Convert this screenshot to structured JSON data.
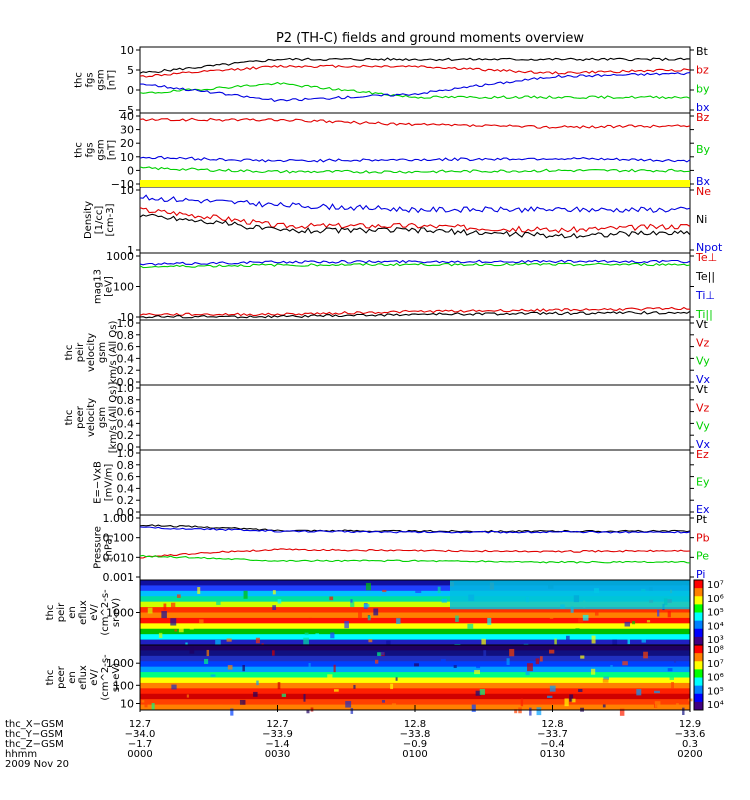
{
  "title": "P2 (TH-C) fields and ground moments overview",
  "colors": {
    "black": "#000000",
    "red": "#e00000",
    "green": "#00d000",
    "blue": "#0000e0",
    "yellow": "#ffff00"
  },
  "panels": [
    {
      "id": "fgs-gsm",
      "ylabel": [
        "thc",
        "fgs",
        "gsm",
        "[nT]"
      ],
      "yticks": [
        "10",
        "5",
        "0",
        "−5"
      ],
      "yrange": [
        -7,
        11
      ],
      "legend": [
        {
          "label": "Bt",
          "color": "black"
        },
        {
          "label": "bz",
          "color": "red"
        },
        {
          "label": "by",
          "color": "green"
        },
        {
          "label": "bx",
          "color": "blue"
        }
      ]
    },
    {
      "id": "fgs-dsl",
      "ylabel": [
        "thc",
        "fgs",
        "gsm",
        "[nT]"
      ],
      "yticks": [
        "40",
        "30",
        "20",
        "10",
        "0",
        "−10"
      ],
      "yrange": [
        -14,
        44
      ],
      "legend": [
        {
          "label": "Bz",
          "color": "red"
        },
        {
          "label": "By",
          "color": "green"
        },
        {
          "label": "Bx",
          "color": "blue"
        }
      ]
    },
    {
      "id": "density",
      "ylabel": [
        "Density",
        "[1/cc]",
        "[cm-3]"
      ],
      "yticks": [
        "10",
        "1"
      ],
      "scale": "log",
      "legend": [
        {
          "label": "Ne",
          "color": "red"
        },
        {
          "label": "Ni",
          "color": "black"
        },
        {
          "label": "Npot",
          "color": "blue"
        }
      ]
    },
    {
      "id": "temp",
      "ylabel": [
        "mag13",
        "[eV]"
      ],
      "yticks": [
        "1000",
        "100",
        "10"
      ],
      "scale": "log",
      "legend": [
        {
          "label": "Te⊥",
          "color": "red"
        },
        {
          "label": "Te||",
          "color": "black"
        },
        {
          "label": "Ti⊥",
          "color": "blue"
        },
        {
          "label": "Ti||",
          "color": "green"
        }
      ]
    },
    {
      "id": "peir-vel",
      "ylabel": [
        "thc",
        "peir",
        "velocity",
        "gsm",
        "km/s (All Qs)"
      ],
      "yticks": [
        "1.0",
        "0.8",
        "0.6",
        "0.4",
        "0.2",
        "0.0"
      ],
      "legend": [
        {
          "label": "Vt",
          "color": "black"
        },
        {
          "label": "Vz",
          "color": "red"
        },
        {
          "label": "Vy",
          "color": "green"
        },
        {
          "label": "Vx",
          "color": "blue"
        }
      ]
    },
    {
      "id": "peer-vel",
      "ylabel": [
        "thc",
        "peer",
        "velocity",
        "gsm",
        "[km/s (All Qs)]"
      ],
      "yticks": [
        "1.0",
        "0.8",
        "0.6",
        "0.4",
        "0.2",
        "0.0"
      ],
      "legend": [
        {
          "label": "Vt",
          "color": "black"
        },
        {
          "label": "Vz",
          "color": "red"
        },
        {
          "label": "Vy",
          "color": "green"
        },
        {
          "label": "Vx",
          "color": "blue"
        }
      ]
    },
    {
      "id": "efield",
      "ylabel": [
        "E=−VxB",
        "[mV/m]"
      ],
      "yticks": [
        "1.0",
        "0.8",
        "0.6",
        "0.4",
        "0.2",
        "0.0"
      ],
      "legend": [
        {
          "label": "Ez",
          "color": "red"
        },
        {
          "label": "Ey",
          "color": "green"
        },
        {
          "label": "Ex",
          "color": "blue"
        }
      ]
    },
    {
      "id": "pressure",
      "ylabel": [
        "Pressure",
        "[nPa]"
      ],
      "yticks": [
        "1.000",
        "0.100",
        "0.010",
        "0.001"
      ],
      "scale": "log",
      "legend": [
        {
          "label": "Pt",
          "color": "black"
        },
        {
          "label": "Pb",
          "color": "red"
        },
        {
          "label": "Pe",
          "color": "green"
        },
        {
          "label": "Pi",
          "color": "blue"
        }
      ]
    },
    {
      "id": "peir-eflux",
      "ylabel": [
        "thc",
        "peir",
        "en",
        "eflux",
        "eV/",
        "(cm^2-s-",
        "sr-eV)"
      ],
      "yticks": [
        "1000"
      ],
      "colorbar": [
        "10⁷",
        "10⁶",
        "10⁵",
        "10⁴",
        "10³"
      ]
    },
    {
      "id": "peer-eflux",
      "ylabel": [
        "thc",
        "peer",
        "en",
        "eflux",
        "eV/",
        "(cm^2-s-",
        "sr-eV)"
      ],
      "yticks": [
        "1000",
        "100",
        "10"
      ],
      "colorbar": [
        "10⁸",
        "10⁷",
        "10⁶",
        "10⁵",
        "10⁴"
      ]
    }
  ],
  "xaxis": {
    "row_labels": [
      "thc_X−GSM",
      "thc_Y−GSM",
      "thc_Z−GSM",
      "hhmm",
      "2009 Nov 20"
    ],
    "ticks": [
      {
        "x": "12.7",
        "y": "−34.0",
        "z": "−1.7",
        "t": "0000"
      },
      {
        "x": "12.7",
        "y": "−33.9",
        "z": "−1.4",
        "t": "0030"
      },
      {
        "x": "12.8",
        "y": "−33.8",
        "z": "−0.9",
        "t": "0100"
      },
      {
        "x": "12.8",
        "y": "−33.7",
        "z": "−0.4",
        "t": "0130"
      },
      {
        "x": "12.9",
        "y": "−33.6",
        "z": "0.3",
        "t": "0200"
      }
    ]
  },
  "chart_data": [
    {
      "type": "line",
      "panel": "fgs-gsm",
      "ylabel": "thc fgs gsm [nT]",
      "ylim": [
        -7,
        11
      ],
      "x": [
        "0000",
        "0030",
        "0100",
        "0130",
        "0200"
      ],
      "series": [
        {
          "name": "Bt",
          "values": [
            4,
            8,
            8,
            8,
            8
          ]
        },
        {
          "name": "bz",
          "values": [
            3,
            6,
            6,
            4,
            5
          ]
        },
        {
          "name": "by",
          "values": [
            -2,
            1,
            -3,
            -3,
            -3
          ]
        },
        {
          "name": "bx",
          "values": [
            1,
            -4,
            -2,
            3,
            4
          ]
        }
      ]
    },
    {
      "type": "line",
      "panel": "fgs-dsl",
      "ylabel": "thc fgs gsm [nT]",
      "ylim": [
        -14,
        44
      ],
      "x": [
        "0000",
        "0030",
        "0100",
        "0130",
        "0200"
      ],
      "series": [
        {
          "name": "Bz",
          "values": [
            40,
            40,
            36,
            34,
            35
          ]
        },
        {
          "name": "By",
          "values": [
            0,
            -3,
            -3,
            -2,
            -2
          ]
        },
        {
          "name": "Bx",
          "values": [
            9,
            6,
            7,
            8,
            6
          ]
        }
      ]
    },
    {
      "type": "line",
      "panel": "density",
      "ylabel": "Density [1/cc] [cm-3]",
      "scale": "log",
      "x": [
        "0000",
        "0030",
        "0100",
        "0130",
        "0200"
      ],
      "series": [
        {
          "name": "Ne",
          "values": [
            6,
            3.5,
            3.5,
            3,
            3.5
          ]
        },
        {
          "name": "Ni",
          "values": [
            5,
            3,
            3,
            2.5,
            2.8
          ]
        },
        {
          "name": "Npot",
          "values": [
            9,
            7,
            6,
            6,
            6
          ]
        }
      ]
    },
    {
      "type": "line",
      "panel": "temp",
      "ylabel": "mag13 [eV]",
      "scale": "log",
      "x": [
        "0000",
        "0030",
        "0100",
        "0130",
        "0200"
      ],
      "series": [
        {
          "name": "Te⊥",
          "values": [
            13,
            13,
            16,
            18,
            20
          ]
        },
        {
          "name": "Te||",
          "values": [
            11,
            11,
            13,
            14,
            15
          ]
        },
        {
          "name": "Ti⊥",
          "values": [
            500,
            600,
            620,
            620,
            620
          ]
        },
        {
          "name": "Ti||",
          "values": [
            420,
            480,
            500,
            500,
            500
          ]
        }
      ]
    },
    {
      "type": "line",
      "panel": "pressure",
      "ylabel": "Pressure [nPa]",
      "scale": "log",
      "x": [
        "0000",
        "0030",
        "0100",
        "0130",
        "0200"
      ],
      "series": [
        {
          "name": "Pt",
          "values": [
            0.4,
            0.22,
            0.2,
            0.2,
            0.2
          ]
        },
        {
          "name": "Pb",
          "values": [
            0.01,
            0.025,
            0.022,
            0.02,
            0.022
          ]
        },
        {
          "name": "Pe",
          "values": [
            0.012,
            0.007,
            0.007,
            0.006,
            0.006
          ]
        },
        {
          "name": "Pi",
          "values": [
            0.3,
            0.2,
            0.18,
            0.18,
            0.18
          ]
        }
      ]
    },
    {
      "type": "heatmap",
      "panel": "peir-eflux",
      "ylabel": "thc peir en eflux eV/(cm^2-s-sr-eV)",
      "colorbar": [
        "10^3",
        "10^7"
      ]
    },
    {
      "type": "heatmap",
      "panel": "peer-eflux",
      "ylabel": "thc peer en eflux eV/(cm^2-s-sr-eV)",
      "colorbar": [
        "10^4",
        "10^8"
      ]
    }
  ]
}
